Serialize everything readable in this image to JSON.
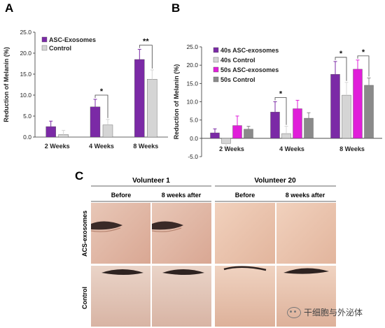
{
  "panel_labels": {
    "a": "A",
    "b": "B",
    "c": "C"
  },
  "colors": {
    "asc": "#7b2aa6",
    "control": "#d5d5d5",
    "asc50": "#e01ed9",
    "control50": "#8a8a8a"
  },
  "chart_data": [
    {
      "type": "bar",
      "panel": "A",
      "ylabel": "Reduction of Melanin (%)",
      "ylim": [
        0,
        25
      ],
      "yticks": [
        "0.0",
        "5.0",
        "10.0",
        "15.0",
        "20.0",
        "25.0"
      ],
      "categories": [
        "2 Weeks",
        "4 Weeks",
        "8 Weeks"
      ],
      "legend": "top-left",
      "series": [
        {
          "name": "ASC-Exosomes",
          "values": [
            2.5,
            7.2,
            18.5
          ],
          "errors": [
            1.3,
            1.8,
            2.4
          ]
        },
        {
          "name": "Control",
          "values": [
            0.6,
            2.9,
            13.8
          ],
          "errors": [
            1.0,
            1.3,
            2.2
          ]
        }
      ],
      "significance": [
        {
          "category": "4 Weeks",
          "label": "*"
        },
        {
          "category": "8 Weeks",
          "label": "**"
        }
      ]
    },
    {
      "type": "bar",
      "panel": "B",
      "ylabel": "Reduction of Melanin (%)",
      "ylim": [
        -5,
        25
      ],
      "yticks": [
        "-5.0",
        "0.0",
        "5.0",
        "10.0",
        "15.0",
        "20.0",
        "25.0"
      ],
      "categories": [
        "2 Weeks",
        "4 Weeks",
        "8 Weeks"
      ],
      "legend": "top-left",
      "series": [
        {
          "name": "40s ASC-exosomes",
          "values": [
            1.5,
            7.2,
            17.5
          ],
          "errors": [
            1.1,
            2.8,
            3.5
          ]
        },
        {
          "name": "40s Control",
          "values": [
            -1.4,
            1.3,
            11.8
          ],
          "errors": [
            1.2,
            2.0,
            3.5
          ]
        },
        {
          "name": "50s ASC-exosomes",
          "values": [
            3.5,
            8.1,
            18.9
          ],
          "errors": [
            2.6,
            2.3,
            2.5
          ]
        },
        {
          "name": "50s Control",
          "values": [
            2.5,
            5.5,
            14.5
          ],
          "errors": [
            0.8,
            1.5,
            2.0
          ]
        }
      ],
      "significance": [
        {
          "category": "4 Weeks",
          "label": "*"
        },
        {
          "category": "8 Weeks",
          "label": "*"
        },
        {
          "category": "8 Weeks",
          "label": "*"
        }
      ]
    }
  ],
  "panel_c": {
    "volunteers": [
      {
        "name": "Volunteer 1",
        "before": "Before",
        "after": "8 weeks after"
      },
      {
        "name": "Volunteer 20",
        "before": "Before",
        "after": "8 weeks after"
      }
    ],
    "rows": [
      "ACS-exosomes",
      "Control"
    ]
  },
  "watermark": {
    "text": "干细胞与外泌体"
  }
}
